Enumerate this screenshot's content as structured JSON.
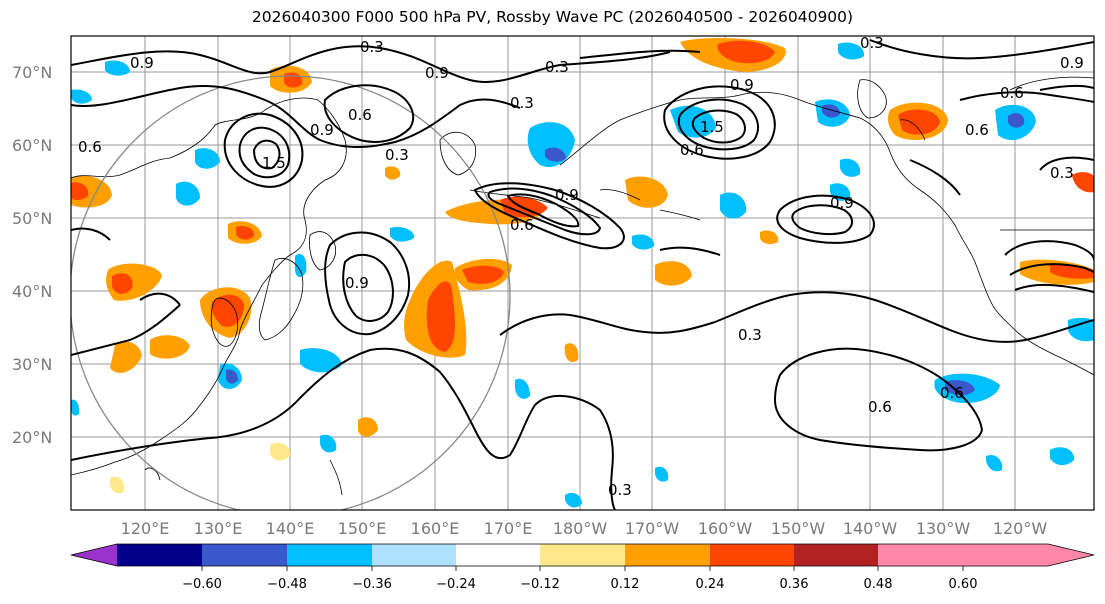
{
  "title": "2026040300 F000 500 hPa PV, Rossby Wave PC (2026040500 - 2026040900)",
  "lat_labels": [
    "70°N",
    "60°N",
    "50°N",
    "40°N",
    "30°N",
    "20°N"
  ],
  "lon_labels": [
    "120°E",
    "130°E",
    "140°E",
    "150°E",
    "160°E",
    "170°E",
    "180°W",
    "170°W",
    "160°W",
    "150°W",
    "140°W",
    "130°W",
    "120°W"
  ],
  "contour_labels": [
    "0.9",
    "0.3",
    "0.3",
    "0.9",
    "0.6",
    "0.3",
    "0.9",
    "0.6",
    "0.3",
    "1.5",
    "0.9",
    "0.6",
    "0.6",
    "0.3",
    "0.9",
    "0.9",
    "0.6",
    "0.9",
    "0.6",
    "0.3",
    "1.5",
    "0.3",
    "0.6",
    "0.6",
    "0.3",
    "0.9"
  ],
  "colorbar": {
    "ticks": [
      "−0.60",
      "−0.48",
      "−0.36",
      "−0.24",
      "−0.12",
      "0.12",
      "0.24",
      "0.36",
      "0.48",
      "0.60"
    ],
    "colors": [
      "#9a33cc",
      "#00008b",
      "#3a57cc",
      "#00bfff",
      "#b0e0ff",
      "#ffffff",
      "#ffe88a",
      "#ffa000",
      "#ff4500",
      "#b22222",
      "#ff88aa"
    ]
  }
}
